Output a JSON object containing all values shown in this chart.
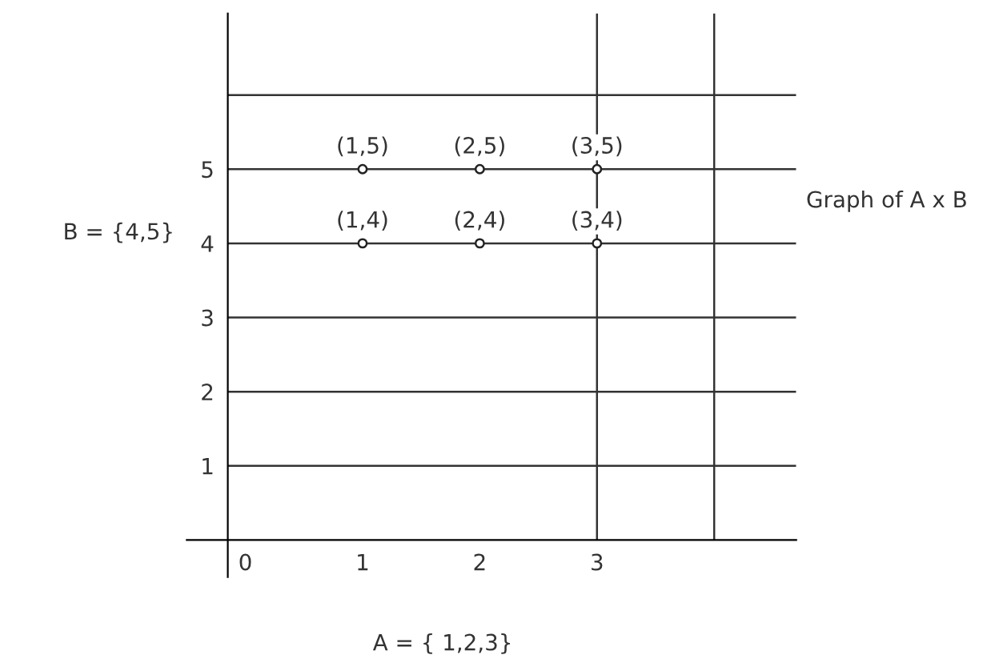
{
  "chart_data": {
    "type": "scatter",
    "xlabel": "A = { 1,2,3}",
    "ylabel": "B = {4,5}",
    "x": [
      1,
      2,
      3,
      1,
      2,
      3
    ],
    "series": [
      {
        "color": "#222222",
        "values": [
          4,
          4,
          4,
          5,
          5,
          5
        ]
      }
    ],
    "marker": "circle",
    "xlim": [
      -0.5,
      4.7
    ],
    "ylim": [
      -0.5,
      7.1
    ],
    "xticks": [
      0,
      1,
      2,
      3
    ],
    "yticks": [
      1,
      2,
      3,
      4,
      5
    ],
    "grid": "y",
    "ref_lines": [
      {
        "axis": "y",
        "value": 6,
        "color": "#333333"
      },
      {
        "axis": "x",
        "value": 3,
        "color": "#333333"
      },
      {
        "axis": "x",
        "value": 4,
        "color": "#333333"
      }
    ],
    "annotations": [
      {
        "text": "(1,4)",
        "x": 1,
        "y": 4
      },
      {
        "text": "(2,4)",
        "x": 2,
        "y": 4
      },
      {
        "text": "(3,4)",
        "x": 3,
        "y": 4
      },
      {
        "text": "(1,5)",
        "x": 1,
        "y": 5
      },
      {
        "text": "(2,5)",
        "x": 2,
        "y": 5
      },
      {
        "text": "(3,5)",
        "x": 3,
        "y": 5
      },
      "Graph of A x B"
    ]
  }
}
